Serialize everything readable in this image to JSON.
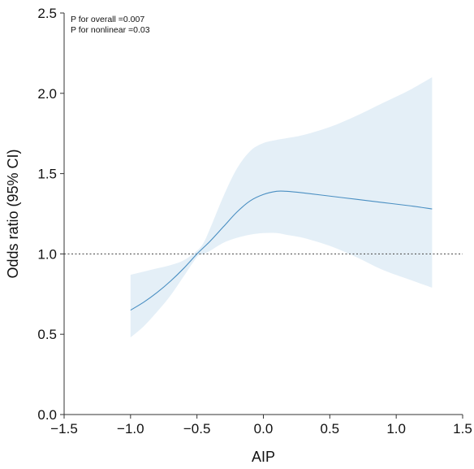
{
  "chart_data": {
    "type": "line",
    "xlabel": "AIP",
    "ylabel": "Odds ratio (95% CI)",
    "xlim": [
      -1.5,
      1.5
    ],
    "ylim": [
      0.0,
      2.5
    ],
    "x_ticks": [
      -1.5,
      -1.0,
      -0.5,
      0.0,
      0.5,
      1.0,
      1.5
    ],
    "x_tick_labels": [
      "−1.5",
      "−1.0",
      "−0.5",
      "0.0",
      "0.5",
      "1.0",
      "1.5"
    ],
    "y_ticks": [
      0.0,
      0.5,
      1.0,
      1.5,
      2.0,
      2.5
    ],
    "y_tick_labels": [
      "0.0",
      "0.5",
      "1.0",
      "1.5",
      "2.0",
      "2.5"
    ],
    "reference_line": 1.0,
    "annotations": [
      "P for overall =0.007",
      "P for nonlinear =0.03"
    ],
    "grid": false,
    "colors": {
      "line": "#4a8fc2",
      "band": "#e4eff7",
      "reference": "#555555",
      "axis": "#333333"
    },
    "series": [
      {
        "x": [
          -1.0,
          -0.9,
          -0.8,
          -0.7,
          -0.6,
          -0.5,
          -0.45,
          -0.4,
          -0.3,
          -0.2,
          -0.1,
          0.0,
          0.1,
          0.17,
          0.3,
          0.5,
          0.7,
          0.9,
          1.1,
          1.27
        ],
        "y": [
          0.65,
          0.7,
          0.76,
          0.83,
          0.91,
          1.0,
          1.04,
          1.08,
          1.17,
          1.26,
          1.33,
          1.37,
          1.39,
          1.39,
          1.38,
          1.36,
          1.34,
          1.32,
          1.3,
          1.28
        ],
        "lower": [
          0.48,
          0.55,
          0.64,
          0.74,
          0.86,
          0.98,
          1.0,
          1.02,
          1.07,
          1.1,
          1.12,
          1.13,
          1.13,
          1.12,
          1.1,
          1.05,
          0.98,
          0.9,
          0.84,
          0.79
        ],
        "upper": [
          0.87,
          0.89,
          0.91,
          0.93,
          0.96,
          1.02,
          1.07,
          1.16,
          1.36,
          1.53,
          1.64,
          1.69,
          1.71,
          1.72,
          1.74,
          1.79,
          1.86,
          1.94,
          2.02,
          2.1
        ]
      }
    ]
  }
}
